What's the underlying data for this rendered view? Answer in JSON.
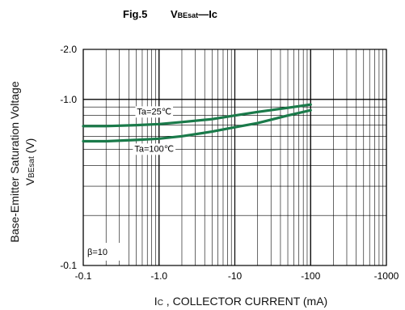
{
  "chart_data": {
    "type": "line",
    "title": "Fig.5",
    "quantity": {
      "main": "V",
      "sub": "BEsat",
      "rest": "—Ic"
    },
    "xlabel": {
      "prefix": "I",
      "sub": "C",
      "rest": " , COLLECTOR CURRENT (mA)"
    },
    "ylabel": {
      "line1": "Base-Emitter Saturation Voltage",
      "line2": {
        "main": "V",
        "sub": "BEsat",
        "rest": " (V)"
      }
    },
    "x_scale": "log",
    "y_scale": "log",
    "xlim": [
      0.1,
      1000
    ],
    "ylim": [
      0.1,
      2.0
    ],
    "x_ticks": [
      {
        "value": 0.1,
        "label": "-0.1"
      },
      {
        "value": 1,
        "label": "-1.0"
      },
      {
        "value": 10,
        "label": "-10"
      },
      {
        "value": 100,
        "label": "-100"
      },
      {
        "value": 1000,
        "label": "-1000"
      }
    ],
    "y_ticks": [
      {
        "value": 0.1,
        "label": "-0.1"
      },
      {
        "value": 1.0,
        "label": "-1.0"
      },
      {
        "value": 2.0,
        "label": "-2.0"
      }
    ],
    "grid": true,
    "series": [
      {
        "name": "Ta=25℃",
        "color": "#1a7a4a",
        "x": [
          0.1,
          0.2,
          0.5,
          1,
          2,
          5,
          10,
          20,
          50,
          100
        ],
        "y": [
          0.69,
          0.69,
          0.7,
          0.71,
          0.73,
          0.76,
          0.8,
          0.84,
          0.89,
          0.93
        ]
      },
      {
        "name": "Ta=100℃",
        "color": "#1a7a4a",
        "x": [
          0.1,
          0.2,
          0.5,
          1,
          2,
          5,
          10,
          20,
          50,
          100
        ],
        "y": [
          0.56,
          0.56,
          0.57,
          0.58,
          0.6,
          0.64,
          0.68,
          0.72,
          0.8,
          0.86
        ]
      }
    ],
    "annotations": [
      "β=10"
    ]
  }
}
